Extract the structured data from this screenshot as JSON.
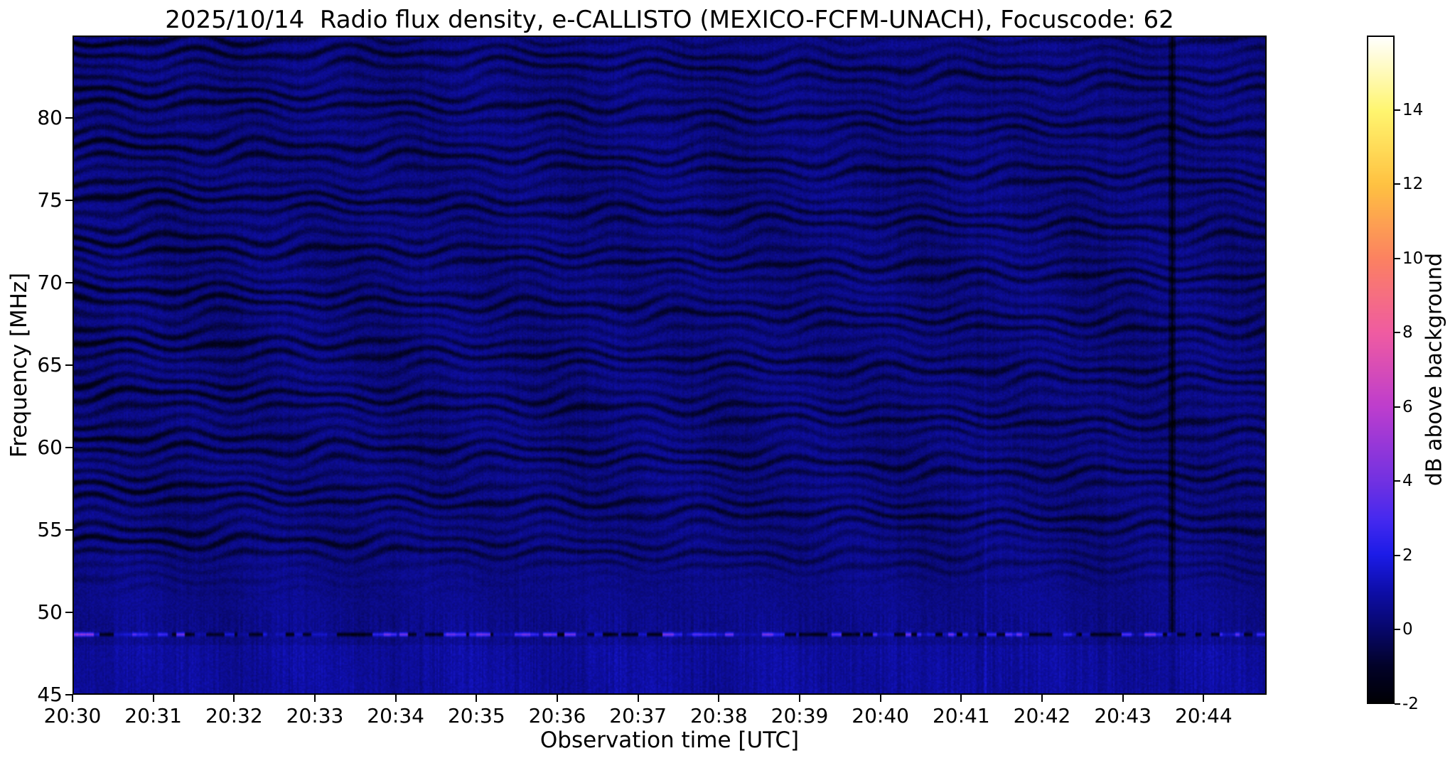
{
  "figure": {
    "background": "#ffffff",
    "text_color": "#000000"
  },
  "chart_data": {
    "type": "heatmap",
    "title": "2025/10/14  Radio flux density, e-CALLISTO (MEXICO-FCFM-UNACH), Focuscode: 62",
    "xlabel": "Observation time [UTC]",
    "ylabel": "Frequency [MHz]",
    "x_ticks": [
      "20:30",
      "20:31",
      "20:32",
      "20:33",
      "20:34",
      "20:35",
      "20:36",
      "20:37",
      "20:38",
      "20:39",
      "20:40",
      "20:41",
      "20:42",
      "20:43",
      "20:44"
    ],
    "x_span_minutes": 14.78,
    "ylim": [
      45,
      85
    ],
    "y_ticks": [
      45,
      50,
      55,
      60,
      65,
      70,
      75,
      80
    ],
    "grid": false,
    "background_level_db": 0.5,
    "colorbar": {
      "label": "dB above background",
      "range": [
        -2,
        16
      ],
      "ticks": [
        -2,
        0,
        2,
        4,
        6,
        8,
        10,
        12,
        14
      ],
      "colormap": "gnuplot2-like",
      "colormap_stops": [
        {
          "value": -2,
          "color": "#000005"
        },
        {
          "value": -1,
          "color": "#03032a"
        },
        {
          "value": 0,
          "color": "#08086c"
        },
        {
          "value": 1,
          "color": "#0e0ea8"
        },
        {
          "value": 2,
          "color": "#1c1ce8"
        },
        {
          "value": 3,
          "color": "#482af0"
        },
        {
          "value": 4,
          "color": "#7232e2"
        },
        {
          "value": 6,
          "color": "#be3ece"
        },
        {
          "value": 8,
          "color": "#f05ca2"
        },
        {
          "value": 10,
          "color": "#fc8262"
        },
        {
          "value": 12,
          "color": "#ffc242"
        },
        {
          "value": 14,
          "color": "#fff670"
        },
        {
          "value": 16,
          "color": "#ffffff"
        }
      ]
    },
    "features": [
      {
        "name": "interference-fringes",
        "freq_range_mhz": [
          51,
          85
        ],
        "spacing_mhz": 0.8,
        "depth_db": 1.4,
        "description": "wavy dark quasi-horizontal banding over the whole time span, strongest toward upper left"
      },
      {
        "name": "emission-channel",
        "freq_mhz": 48.7,
        "level_db_range": [
          -2,
          5.5
        ],
        "description": "intermittent horizontal line alternating bright and black segments across all times, bright cluster at 20:30"
      },
      {
        "name": "faint-bright-vertical-line",
        "minutes_from_start": 11.3,
        "time_utc": "20:41.3",
        "freq_range_mhz": [
          45,
          58
        ],
        "boost_db": 0.55
      },
      {
        "name": "dark-vertical-line",
        "minutes_from_start": 13.6,
        "time_utc": "20:43.6",
        "freq_range_mhz": [
          48,
          85
        ],
        "drop_db": 2.1
      }
    ]
  }
}
